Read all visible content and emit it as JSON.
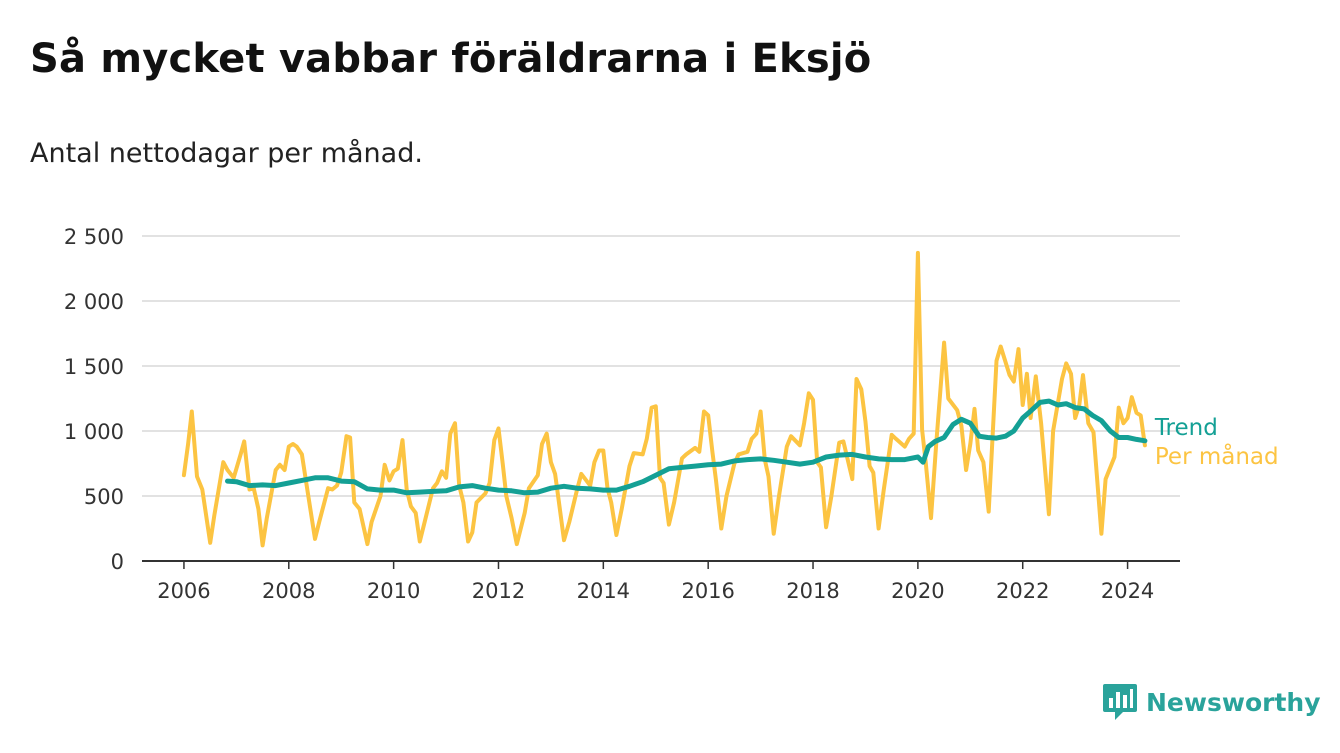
{
  "title": "Så mycket vabbar föräldrarna i Eksjö",
  "subtitle": "Antal nettodagar per månad.",
  "brand": {
    "name": "Newsworthy",
    "icon": "newsworthy-logo-icon",
    "color": "#2aa39b"
  },
  "chart_data": {
    "type": "line",
    "title": "Så mycket vabbar föräldrarna i Eksjö",
    "subtitle": "Antal nettodagar per månad.",
    "xlabel": "",
    "ylabel": "",
    "ylim": [
      0,
      2500
    ],
    "xlim": [
      2005.2,
      2025.0
    ],
    "y_ticks": [
      0,
      500,
      1000,
      1500,
      2000,
      2500
    ],
    "y_tick_labels": [
      "0",
      "500",
      "1 000",
      "1 500",
      "2 000",
      "2 500"
    ],
    "x_ticks": [
      2006,
      2008,
      2010,
      2012,
      2014,
      2016,
      2018,
      2020,
      2022,
      2024
    ],
    "x_tick_labels": [
      "2006",
      "2008",
      "2010",
      "2012",
      "2014",
      "2016",
      "2018",
      "2020",
      "2022",
      "2024"
    ],
    "grid": true,
    "legend": "direct labels at right end of lines",
    "series": [
      {
        "name": "Per månad",
        "color": "#fcc442",
        "x": [
          2006.0,
          2006.08,
          2006.15,
          2006.25,
          2006.35,
          2006.5,
          2006.58,
          2006.75,
          2006.83,
          2006.95,
          2007.08,
          2007.15,
          2007.25,
          2007.33,
          2007.42,
          2007.5,
          2007.58,
          2007.75,
          2007.83,
          2007.92,
          2008.0,
          2008.08,
          2008.15,
          2008.25,
          2008.35,
          2008.5,
          2008.58,
          2008.75,
          2008.83,
          2008.92,
          2009.0,
          2009.1,
          2009.17,
          2009.25,
          2009.35,
          2009.5,
          2009.58,
          2009.75,
          2009.83,
          2009.92,
          2010.0,
          2010.08,
          2010.17,
          2010.25,
          2010.33,
          2010.42,
          2010.5,
          2010.58,
          2010.75,
          2010.83,
          2010.92,
          2011.0,
          2011.08,
          2011.17,
          2011.25,
          2011.33,
          2011.42,
          2011.5,
          2011.58,
          2011.75,
          2011.83,
          2011.92,
          2012.0,
          2012.08,
          2012.15,
          2012.25,
          2012.35,
          2012.5,
          2012.58,
          2012.75,
          2012.83,
          2012.92,
          2013.0,
          2013.08,
          2013.15,
          2013.25,
          2013.35,
          2013.5,
          2013.58,
          2013.75,
          2013.83,
          2013.92,
          2014.0,
          2014.08,
          2014.15,
          2014.25,
          2014.35,
          2014.5,
          2014.58,
          2014.75,
          2014.83,
          2014.92,
          2015.0,
          2015.08,
          2015.15,
          2015.25,
          2015.35,
          2015.5,
          2015.58,
          2015.75,
          2015.83,
          2015.92,
          2016.0,
          2016.08,
          2016.15,
          2016.25,
          2016.35,
          2016.5,
          2016.58,
          2016.75,
          2016.83,
          2016.92,
          2017.0,
          2017.08,
          2017.15,
          2017.25,
          2017.35,
          2017.5,
          2017.58,
          2017.75,
          2017.83,
          2017.92,
          2018.0,
          2018.08,
          2018.15,
          2018.25,
          2018.35,
          2018.5,
          2018.58,
          2018.75,
          2018.83,
          2018.92,
          2019.0,
          2019.08,
          2019.15,
          2019.25,
          2019.35,
          2019.5,
          2019.58,
          2019.75,
          2019.83,
          2019.92,
          2020.0,
          2020.08,
          2020.15,
          2020.25,
          2020.35,
          2020.5,
          2020.58,
          2020.75,
          2020.83,
          2020.92,
          2021.0,
          2021.08,
          2021.15,
          2021.25,
          2021.35,
          2021.5,
          2021.58,
          2021.75,
          2021.83,
          2021.92,
          2022.0,
          2022.08,
          2022.15,
          2022.25,
          2022.35,
          2022.5,
          2022.58,
          2022.75,
          2022.83,
          2022.92,
          2023.0,
          2023.08,
          2023.15,
          2023.25,
          2023.35,
          2023.5,
          2023.58,
          2023.75,
          2023.83,
          2023.92,
          2024.0,
          2024.08,
          2024.17,
          2024.25,
          2024.33
        ],
        "values": [
          660,
          900,
          1150,
          650,
          550,
          140,
          350,
          760,
          700,
          640,
          820,
          920,
          550,
          560,
          400,
          120,
          330,
          700,
          740,
          700,
          880,
          900,
          880,
          820,
          560,
          170,
          300,
          560,
          550,
          580,
          680,
          960,
          950,
          450,
          400,
          130,
          300,
          500,
          740,
          620,
          690,
          710,
          930,
          550,
          420,
          370,
          150,
          280,
          560,
          600,
          690,
          640,
          980,
          1060,
          580,
          450,
          150,
          220,
          450,
          520,
          600,
          930,
          1020,
          750,
          500,
          330,
          130,
          370,
          560,
          660,
          900,
          980,
          760,
          670,
          460,
          160,
          300,
          550,
          670,
          580,
          760,
          850,
          850,
          560,
          450,
          200,
          400,
          730,
          830,
          820,
          940,
          1180,
          1190,
          640,
          600,
          280,
          450,
          790,
          820,
          870,
          840,
          1150,
          1120,
          840,
          620,
          250,
          500,
          750,
          820,
          840,
          940,
          980,
          1150,
          780,
          650,
          210,
          500,
          880,
          960,
          890,
          1060,
          1290,
          1240,
          760,
          720,
          260,
          500,
          910,
          920,
          630,
          1400,
          1320,
          1070,
          730,
          680,
          250,
          550,
          970,
          940,
          880,
          940,
          980,
          2370,
          1010,
          760,
          330,
          900,
          1680,
          1250,
          1160,
          1040,
          700,
          900,
          1170,
          850,
          760,
          380,
          1540,
          1650,
          1430,
          1380,
          1630,
          1200,
          1440,
          1100,
          1420,
          1060,
          360,
          1000,
          1400,
          1520,
          1440,
          1100,
          1200,
          1430,
          1060,
          990,
          210,
          630,
          800,
          1180,
          1060,
          1100,
          1260,
          1140,
          1120,
          890
        ]
      },
      {
        "name": "Trend",
        "color": "#14a095",
        "x": [
          2006.83,
          2007.0,
          2007.25,
          2007.5,
          2007.75,
          2008.0,
          2008.25,
          2008.5,
          2008.75,
          2009.0,
          2009.25,
          2009.5,
          2009.75,
          2010.0,
          2010.25,
          2010.5,
          2010.75,
          2011.0,
          2011.25,
          2011.5,
          2011.75,
          2012.0,
          2012.25,
          2012.5,
          2012.75,
          2013.0,
          2013.25,
          2013.5,
          2013.75,
          2014.0,
          2014.25,
          2014.5,
          2014.75,
          2015.0,
          2015.25,
          2015.5,
          2015.75,
          2016.0,
          2016.25,
          2016.5,
          2016.75,
          2017.0,
          2017.25,
          2017.5,
          2017.75,
          2018.0,
          2018.25,
          2018.5,
          2018.75,
          2019.0,
          2019.25,
          2019.5,
          2019.75,
          2020.0,
          2020.1,
          2020.2,
          2020.33,
          2020.5,
          2020.67,
          2020.83,
          2021.0,
          2021.17,
          2021.33,
          2021.5,
          2021.67,
          2021.83,
          2022.0,
          2022.17,
          2022.33,
          2022.5,
          2022.67,
          2022.83,
          2023.0,
          2023.17,
          2023.33,
          2023.5,
          2023.67,
          2023.83,
          2024.0,
          2024.17,
          2024.33
        ],
        "values": [
          615,
          610,
          580,
          585,
          580,
          600,
          620,
          640,
          640,
          615,
          610,
          555,
          545,
          545,
          525,
          530,
          535,
          540,
          570,
          580,
          560,
          545,
          540,
          525,
          530,
          560,
          575,
          560,
          555,
          545,
          545,
          575,
          610,
          660,
          710,
          720,
          730,
          740,
          745,
          770,
          780,
          785,
          775,
          760,
          745,
          760,
          800,
          815,
          820,
          800,
          785,
          780,
          780,
          800,
          760,
          880,
          920,
          950,
          1050,
          1090,
          1060,
          960,
          950,
          945,
          960,
          1000,
          1100,
          1160,
          1220,
          1230,
          1200,
          1210,
          1180,
          1170,
          1120,
          1080,
          1000,
          950,
          950,
          935,
          925
        ]
      }
    ]
  }
}
